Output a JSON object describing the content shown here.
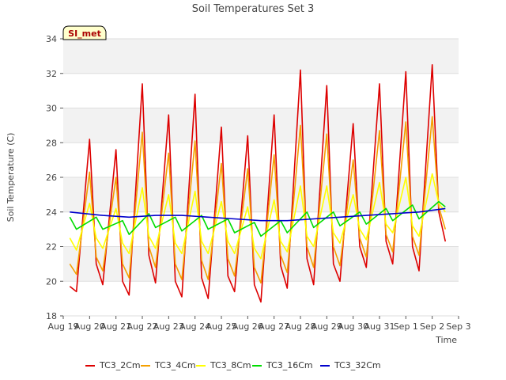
{
  "chart_data": {
    "type": "line",
    "title": "Soil Temperatures Set 3",
    "xlabel": "Time",
    "ylabel": "Soil Temperature (C)",
    "ylim": [
      18,
      34
    ],
    "yticks": [
      18,
      20,
      22,
      24,
      26,
      28,
      30,
      32,
      34
    ],
    "xlim": [
      "2023-08-19",
      "2023-09-03"
    ],
    "xtick_labels": [
      "Aug 19",
      "Aug 20",
      "Aug 21",
      "Aug 22",
      "Aug 23",
      "Aug 24",
      "Aug 25",
      "Aug 26",
      "Aug 27",
      "Aug 28",
      "Aug 29",
      "Aug 30",
      "Aug 31",
      "Sep 1",
      "Sep 2",
      "Sep 3"
    ],
    "grid": true,
    "legend_position": "bottom",
    "annotation": "SI_met",
    "series": [
      {
        "name": "TC3_2Cm",
        "color": "#dd0000",
        "x": [
          "2023-08-19 06:00",
          "2023-08-19 12:00",
          "2023-08-20 00:00",
          "2023-08-20 06:00",
          "2023-08-20 12:00",
          "2023-08-21 00:00",
          "2023-08-21 06:00",
          "2023-08-21 12:00",
          "2023-08-22 00:00",
          "2023-08-22 06:00",
          "2023-08-22 12:00",
          "2023-08-23 00:00",
          "2023-08-23 06:00",
          "2023-08-23 12:00",
          "2023-08-24 00:00",
          "2023-08-24 06:00",
          "2023-08-24 12:00",
          "2023-08-25 00:00",
          "2023-08-25 06:00",
          "2023-08-25 12:00",
          "2023-08-26 00:00",
          "2023-08-26 06:00",
          "2023-08-26 12:00",
          "2023-08-27 00:00",
          "2023-08-27 06:00",
          "2023-08-27 12:00",
          "2023-08-28 00:00",
          "2023-08-28 06:00",
          "2023-08-28 12:00",
          "2023-08-29 00:00",
          "2023-08-29 06:00",
          "2023-08-29 12:00",
          "2023-08-30 00:00",
          "2023-08-30 06:00",
          "2023-08-30 12:00",
          "2023-08-31 00:00",
          "2023-08-31 06:00",
          "2023-08-31 12:00",
          "2023-09-01 00:00",
          "2023-09-01 06:00",
          "2023-09-01 12:00",
          "2023-09-02 00:00",
          "2023-09-02 06:00",
          "2023-09-02 12:00"
        ],
        "y": [
          19.7,
          19.4,
          28.2,
          21.0,
          19.8,
          27.6,
          20.0,
          19.2,
          31.4,
          21.5,
          19.9,
          29.6,
          20.0,
          19.1,
          30.8,
          20.2,
          19.0,
          28.9,
          20.3,
          19.4,
          28.4,
          19.8,
          18.8,
          29.6,
          20.9,
          19.6,
          32.2,
          21.3,
          19.8,
          31.3,
          21.0,
          20.0,
          29.1,
          22.0,
          20.8,
          31.4,
          22.3,
          21.0,
          32.1,
          22.0,
          20.6,
          32.5,
          24.0,
          22.3
        ]
      },
      {
        "name": "TC3_4Cm",
        "color": "#f5a000",
        "x": [
          "2023-08-19 06:00",
          "2023-08-19 12:00",
          "2023-08-20 00:00",
          "2023-08-20 06:00",
          "2023-08-20 12:00",
          "2023-08-21 00:00",
          "2023-08-21 06:00",
          "2023-08-21 12:00",
          "2023-08-22 00:00",
          "2023-08-22 06:00",
          "2023-08-22 12:00",
          "2023-08-23 00:00",
          "2023-08-23 06:00",
          "2023-08-23 12:00",
          "2023-08-24 00:00",
          "2023-08-24 06:00",
          "2023-08-24 12:00",
          "2023-08-25 00:00",
          "2023-08-25 06:00",
          "2023-08-25 12:00",
          "2023-08-26 00:00",
          "2023-08-26 06:00",
          "2023-08-26 12:00",
          "2023-08-27 00:00",
          "2023-08-27 06:00",
          "2023-08-27 12:00",
          "2023-08-28 00:00",
          "2023-08-28 06:00",
          "2023-08-28 12:00",
          "2023-08-29 00:00",
          "2023-08-29 06:00",
          "2023-08-29 12:00",
          "2023-08-30 00:00",
          "2023-08-30 06:00",
          "2023-08-30 12:00",
          "2023-08-31 00:00",
          "2023-08-31 06:00",
          "2023-08-31 12:00",
          "2023-09-01 00:00",
          "2023-09-01 06:00",
          "2023-09-01 12:00",
          "2023-09-02 00:00",
          "2023-09-02 06:00",
          "2023-09-02 12:00"
        ],
        "y": [
          21.0,
          20.4,
          26.3,
          21.4,
          20.6,
          26.0,
          21.0,
          20.2,
          28.6,
          22.0,
          20.8,
          27.4,
          21.0,
          20.1,
          28.1,
          21.2,
          20.1,
          26.8,
          21.3,
          20.3,
          26.5,
          20.8,
          19.9,
          27.3,
          21.5,
          20.5,
          29.0,
          22.0,
          20.8,
          28.5,
          22.0,
          20.9,
          27.0,
          22.5,
          21.4,
          28.7,
          22.7,
          21.7,
          29.2,
          22.6,
          21.5,
          29.5,
          24.3,
          23.0
        ]
      },
      {
        "name": "TC3_8Cm",
        "color": "#ffff00",
        "x": [
          "2023-08-19 06:00",
          "2023-08-19 12:00",
          "2023-08-20 00:00",
          "2023-08-20 06:00",
          "2023-08-20 12:00",
          "2023-08-21 00:00",
          "2023-08-21 06:00",
          "2023-08-21 12:00",
          "2023-08-22 00:00",
          "2023-08-22 06:00",
          "2023-08-22 12:00",
          "2023-08-23 00:00",
          "2023-08-23 06:00",
          "2023-08-23 12:00",
          "2023-08-24 00:00",
          "2023-08-24 06:00",
          "2023-08-24 12:00",
          "2023-08-25 00:00",
          "2023-08-25 06:00",
          "2023-08-25 12:00",
          "2023-08-26 00:00",
          "2023-08-26 06:00",
          "2023-08-26 12:00",
          "2023-08-27 00:00",
          "2023-08-27 06:00",
          "2023-08-27 12:00",
          "2023-08-28 00:00",
          "2023-08-28 06:00",
          "2023-08-28 12:00",
          "2023-08-29 00:00",
          "2023-08-29 06:00",
          "2023-08-29 12:00",
          "2023-08-30 00:00",
          "2023-08-30 06:00",
          "2023-08-30 12:00",
          "2023-08-31 00:00",
          "2023-08-31 06:00",
          "2023-08-31 12:00",
          "2023-09-01 00:00",
          "2023-09-01 06:00",
          "2023-09-01 12:00",
          "2023-09-02 00:00",
          "2023-09-02 06:00",
          "2023-09-02 12:00"
        ],
        "y": [
          22.5,
          21.8,
          24.5,
          22.5,
          21.9,
          24.2,
          22.2,
          21.6,
          25.4,
          22.6,
          21.9,
          25.0,
          22.2,
          21.6,
          25.2,
          22.3,
          21.6,
          24.6,
          22.3,
          21.6,
          24.3,
          21.9,
          21.3,
          24.7,
          22.3,
          21.7,
          25.5,
          22.6,
          22.0,
          25.5,
          22.8,
          22.2,
          25.0,
          23.0,
          22.4,
          25.7,
          23.3,
          22.8,
          26.0,
          23.2,
          22.6,
          26.2,
          24.5,
          24.0
        ]
      },
      {
        "name": "TC3_16Cm",
        "color": "#00dd00",
        "x": [
          "2023-08-19 06:00",
          "2023-08-19 12:00",
          "2023-08-20 06:00",
          "2023-08-20 12:00",
          "2023-08-21 06:00",
          "2023-08-21 12:00",
          "2023-08-22 06:00",
          "2023-08-22 12:00",
          "2023-08-23 06:00",
          "2023-08-23 12:00",
          "2023-08-24 06:00",
          "2023-08-24 12:00",
          "2023-08-25 06:00",
          "2023-08-25 12:00",
          "2023-08-26 06:00",
          "2023-08-26 12:00",
          "2023-08-27 06:00",
          "2023-08-27 12:00",
          "2023-08-28 06:00",
          "2023-08-28 12:00",
          "2023-08-29 06:00",
          "2023-08-29 12:00",
          "2023-08-30 06:00",
          "2023-08-30 12:00",
          "2023-08-31 06:00",
          "2023-08-31 12:00",
          "2023-09-01 06:00",
          "2023-09-01 12:00",
          "2023-09-02 06:00",
          "2023-09-02 12:00"
        ],
        "y": [
          23.7,
          23.0,
          23.7,
          23.0,
          23.5,
          22.7,
          23.9,
          23.1,
          23.7,
          22.9,
          23.8,
          23.0,
          23.6,
          22.8,
          23.4,
          22.6,
          23.5,
          22.8,
          24.0,
          23.1,
          24.0,
          23.2,
          24.0,
          23.3,
          24.2,
          23.5,
          24.4,
          23.6,
          24.6,
          24.3
        ]
      },
      {
        "name": "TC3_32Cm",
        "color": "#0000cc",
        "x": [
          "2023-08-19 06:00",
          "2023-08-20 12:00",
          "2023-08-21 12:00",
          "2023-08-22 12:00",
          "2023-08-23 12:00",
          "2023-08-24 12:00",
          "2023-08-25 12:00",
          "2023-08-26 12:00",
          "2023-08-27 12:00",
          "2023-08-28 12:00",
          "2023-08-29 12:00",
          "2023-08-30 12:00",
          "2023-08-31 12:00",
          "2023-09-01 12:00",
          "2023-09-02 12:00"
        ],
        "y": [
          24.0,
          23.8,
          23.7,
          23.8,
          23.8,
          23.7,
          23.6,
          23.5,
          23.5,
          23.6,
          23.7,
          23.8,
          23.9,
          24.0,
          24.2
        ]
      }
    ]
  }
}
